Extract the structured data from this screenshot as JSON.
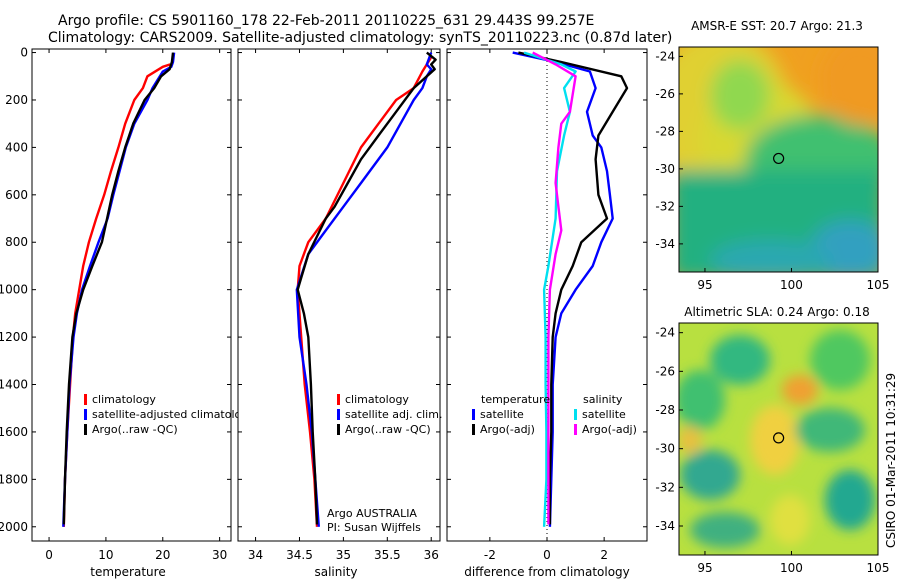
{
  "title_line1": "Argo profile: CS 5901160_178 22-Feb-2011 20110225_631 29.443S 99.257E",
  "title_line2": "Climatology: CARS2009. Satellite-adjusted climatology: synTS_20110223.nc (0.87d later)",
  "footer_credit": "CSIRO 01-Mar-2011 10:31:29",
  "colors": {
    "red": "#ff0000",
    "blue": "#0000ff",
    "black": "#000000",
    "cyan": "#00e0f0",
    "magenta": "#ff00ff"
  },
  "chart_data": [
    {
      "id": "temperature",
      "type": "line",
      "xlabel": "temperature",
      "xlim": [
        -3,
        32
      ],
      "ylim": [
        2060,
        -15
      ],
      "xticks": [
        0,
        10,
        20,
        30
      ],
      "xtick_labels": [
        "0",
        "10",
        "20",
        "30"
      ],
      "yticks": [
        0,
        200,
        400,
        600,
        800,
        1000,
        1200,
        1400,
        1600,
        1800,
        2000
      ],
      "ytick_labels": [
        "0",
        "200",
        "400",
        "600",
        "800",
        "1000",
        "1200",
        "1400",
        "1600",
        "1800",
        "2000"
      ],
      "legend": [
        "climatology",
        "satellite-adjusted climatology",
        "Argo(..raw -QC)"
      ],
      "series": [
        {
          "name": "climatology",
          "color": "red",
          "points": [
            [
              21.3,
              50
            ],
            [
              20,
              60
            ],
            [
              17.3,
              100
            ],
            [
              16.5,
              150
            ],
            [
              15,
              200
            ],
            [
              13.4,
              300
            ],
            [
              12.2,
              400
            ],
            [
              10.9,
              500
            ],
            [
              9.7,
              600
            ],
            [
              8.3,
              700
            ],
            [
              7,
              800
            ],
            [
              6,
              900
            ],
            [
              5.3,
              1000
            ],
            [
              4.6,
              1100
            ],
            [
              4.2,
              1200
            ],
            [
              3.7,
              1400
            ],
            [
              3.2,
              1600
            ],
            [
              2.8,
              1800
            ],
            [
              2.6,
              2000
            ]
          ]
        },
        {
          "name": "satellite",
          "color": "blue",
          "points": [
            [
              22,
              0
            ],
            [
              21.8,
              40
            ],
            [
              21.5,
              60
            ],
            [
              20,
              80
            ],
            [
              18.2,
              150
            ],
            [
              17.3,
              200
            ],
            [
              15,
              300
            ],
            [
              13.5,
              400
            ],
            [
              12.4,
              500
            ],
            [
              11.3,
              600
            ],
            [
              10.3,
              700
            ],
            [
              8.7,
              800
            ],
            [
              7.2,
              900
            ],
            [
              5.8,
              1000
            ],
            [
              4.9,
              1100
            ],
            [
              4.3,
              1200
            ],
            [
              3.6,
              1400
            ],
            [
              3.2,
              1600
            ],
            [
              2.8,
              1800
            ],
            [
              2.5,
              2000
            ]
          ]
        },
        {
          "name": "argo",
          "color": "black",
          "points": [
            [
              21.8,
              0
            ],
            [
              21.6,
              40
            ],
            [
              21.2,
              70
            ],
            [
              19.7,
              100
            ],
            [
              18.5,
              150
            ],
            [
              16.8,
              200
            ],
            [
              14.8,
              300
            ],
            [
              13.4,
              400
            ],
            [
              12.2,
              500
            ],
            [
              11.1,
              600
            ],
            [
              10.2,
              700
            ],
            [
              9.3,
              800
            ],
            [
              7.6,
              900
            ],
            [
              6,
              1000
            ],
            [
              4.8,
              1100
            ],
            [
              4.1,
              1200
            ],
            [
              3.5,
              1400
            ],
            [
              3.1,
              1600
            ],
            [
              2.8,
              1800
            ],
            [
              2.6,
              1990
            ]
          ]
        }
      ]
    },
    {
      "id": "salinity",
      "type": "line",
      "xlabel": "salinity",
      "xlim": [
        33.8,
        36.1
      ],
      "ylim": [
        2060,
        -15
      ],
      "xticks": [
        34,
        34.5,
        35,
        35.5,
        36
      ],
      "xtick_labels": [
        "34",
        "34.5",
        "35",
        "35.5",
        "36"
      ],
      "legend": [
        "climatology",
        "satellite adj. clim.",
        "Argo(..raw -QC)"
      ],
      "annotation": [
        "Argo AUSTRALIA",
        "PI: Susan Wijffels"
      ],
      "series": [
        {
          "name": "climatology",
          "color": "red",
          "points": [
            [
              36,
              20
            ],
            [
              35.9,
              80
            ],
            [
              35.8,
              150
            ],
            [
              35.6,
              200
            ],
            [
              35.4,
              300
            ],
            [
              35.2,
              400
            ],
            [
              35,
              550
            ],
            [
              34.8,
              700
            ],
            [
              34.6,
              800
            ],
            [
              34.5,
              900
            ],
            [
              34.48,
              1000
            ],
            [
              34.52,
              1200
            ],
            [
              34.56,
              1400
            ],
            [
              34.62,
              1600
            ],
            [
              34.67,
              1800
            ],
            [
              34.7,
              2000
            ]
          ]
        },
        {
          "name": "satellite",
          "color": "blue",
          "points": [
            [
              36,
              0
            ],
            [
              35.95,
              50
            ],
            [
              36,
              70
            ],
            [
              35.95,
              100
            ],
            [
              35.9,
              150
            ],
            [
              35.8,
              200
            ],
            [
              35.65,
              300
            ],
            [
              35.5,
              400
            ],
            [
              35.2,
              550
            ],
            [
              35,
              650
            ],
            [
              34.8,
              750
            ],
            [
              34.6,
              850
            ],
            [
              34.47,
              1000
            ],
            [
              34.5,
              1200
            ],
            [
              34.58,
              1400
            ],
            [
              34.64,
              1600
            ],
            [
              34.68,
              1800
            ],
            [
              34.72,
              2000
            ]
          ]
        },
        {
          "name": "argo",
          "color": "black",
          "points": [
            [
              35.95,
              0
            ],
            [
              36.05,
              30
            ],
            [
              36,
              50
            ],
            [
              36.04,
              70
            ],
            [
              35.95,
              100
            ],
            [
              35.8,
              150
            ],
            [
              35.6,
              250
            ],
            [
              35.4,
              350
            ],
            [
              35.2,
              450
            ],
            [
              35.05,
              550
            ],
            [
              34.9,
              650
            ],
            [
              34.8,
              700
            ],
            [
              34.6,
              850
            ],
            [
              34.52,
              950
            ],
            [
              34.48,
              1000
            ],
            [
              34.55,
              1100
            ],
            [
              34.6,
              1200
            ],
            [
              34.63,
              1400
            ],
            [
              34.65,
              1600
            ],
            [
              34.68,
              1800
            ],
            [
              34.7,
              1990
            ]
          ]
        }
      ]
    },
    {
      "id": "difference",
      "type": "line",
      "xlabel": "difference from climatology",
      "xlim": [
        -3.5,
        3.5
      ],
      "ylim": [
        2060,
        -15
      ],
      "xticks": [
        -2,
        0,
        2
      ],
      "xtick_labels": [
        "-2",
        "0",
        "2"
      ],
      "legend_headers": [
        "temperature",
        "salinity"
      ],
      "legend": [
        "satellite",
        "Argo(-adj)",
        "satellite",
        "Argo(-adj)"
      ],
      "zero_line": 0,
      "series": [
        {
          "name": "temperature satellite",
          "color": "blue",
          "points": [
            [
              -1.2,
              0
            ],
            [
              0.3,
              40
            ],
            [
              1.5,
              80
            ],
            [
              1.7,
              150
            ],
            [
              1.4,
              250
            ],
            [
              1.6,
              350
            ],
            [
              1.9,
              400
            ],
            [
              2.1,
              500
            ],
            [
              2.2,
              600
            ],
            [
              2.3,
              700
            ],
            [
              1.9,
              800
            ],
            [
              1.6,
              900
            ],
            [
              1,
              1000
            ],
            [
              0.5,
              1100
            ],
            [
              0.3,
              1200
            ],
            [
              0.2,
              1400
            ],
            [
              0.2,
              1600
            ],
            [
              0.15,
              1800
            ],
            [
              0.1,
              2000
            ]
          ]
        },
        {
          "name": "temperature argo",
          "color": "black",
          "points": [
            [
              -1,
              0
            ],
            [
              0.5,
              40
            ],
            [
              2.6,
              100
            ],
            [
              2.8,
              150
            ],
            [
              2.3,
              250
            ],
            [
              1.8,
              350
            ],
            [
              1.7,
              450
            ],
            [
              1.8,
              600
            ],
            [
              2.1,
              700
            ],
            [
              1.2,
              800
            ],
            [
              0.9,
              900
            ],
            [
              0.5,
              1000
            ],
            [
              0.3,
              1100
            ],
            [
              0.2,
              1200
            ],
            [
              0.15,
              1400
            ],
            [
              0.15,
              1600
            ],
            [
              0.1,
              1800
            ],
            [
              0.1,
              1990
            ]
          ]
        },
        {
          "name": "salinity satellite",
          "color": "cyan",
          "points": [
            [
              -0.8,
              0
            ],
            [
              0.5,
              50
            ],
            [
              1,
              80
            ],
            [
              0.6,
              150
            ],
            [
              0.8,
              250
            ],
            [
              0.6,
              350
            ],
            [
              0.35,
              500
            ],
            [
              0.3,
              700
            ],
            [
              0.05,
              900
            ],
            [
              -0.1,
              1000
            ],
            [
              -0.05,
              1200
            ],
            [
              -0.05,
              1400
            ],
            [
              -0.02,
              1600
            ],
            [
              -0.02,
              1800
            ],
            [
              -0.1,
              2000
            ]
          ]
        },
        {
          "name": "salinity argo",
          "color": "magenta",
          "points": [
            [
              -0.5,
              0
            ],
            [
              0.3,
              50
            ],
            [
              1,
              100
            ],
            [
              0.8,
              250
            ],
            [
              0.5,
              300
            ],
            [
              0.4,
              400
            ],
            [
              0.3,
              550
            ],
            [
              0.4,
              650
            ],
            [
              0.5,
              750
            ],
            [
              0.3,
              850
            ],
            [
              0.1,
              1000
            ],
            [
              0.05,
              1200
            ],
            [
              0.05,
              1400
            ],
            [
              0.05,
              1600
            ],
            [
              0.05,
              1800
            ],
            [
              0.05,
              1990
            ]
          ]
        }
      ]
    },
    {
      "id": "sst_map",
      "type": "heatmap",
      "title": "AMSR-E SST: 20.7  Argo: 21.3",
      "xlim": [
        93.5,
        105
      ],
      "ylim": [
        -35.5,
        -23.5
      ],
      "xticks": [
        95,
        100,
        105
      ],
      "xtick_labels": [
        "95",
        "100",
        "105"
      ],
      "yticks": [
        -24,
        -26,
        -28,
        -30,
        -32,
        -34
      ],
      "ytick_labels": [
        "-24",
        "-26",
        "-28",
        "-30",
        "-32",
        "-34"
      ],
      "marker": {
        "lon": 99.257,
        "lat": -29.443
      },
      "colors": {
        "warm": "#f0a020",
        "mid": "#e8d830",
        "cool": "#70d060",
        "cold": "#20b080",
        "coldest": "#30a0c0"
      }
    },
    {
      "id": "sla_map",
      "type": "heatmap",
      "title": "Altimetric SLA: 0.24  Argo: 0.18",
      "xlim": [
        93.5,
        105
      ],
      "ylim": [
        -35.5,
        -23.5
      ],
      "xticks": [
        95,
        100,
        105
      ],
      "xtick_labels": [
        "95",
        "100",
        "105"
      ],
      "yticks": [
        -24,
        -26,
        -28,
        -30,
        -32,
        -34
      ],
      "ytick_labels": [
        "-24",
        "-26",
        "-28",
        "-30",
        "-32",
        "-34"
      ],
      "marker": {
        "lon": 99.257,
        "lat": -29.443
      },
      "colors": {
        "high": "#f0a030",
        "mid": "#e8e040",
        "low": "#60d060",
        "lowest": "#20a890"
      }
    }
  ]
}
